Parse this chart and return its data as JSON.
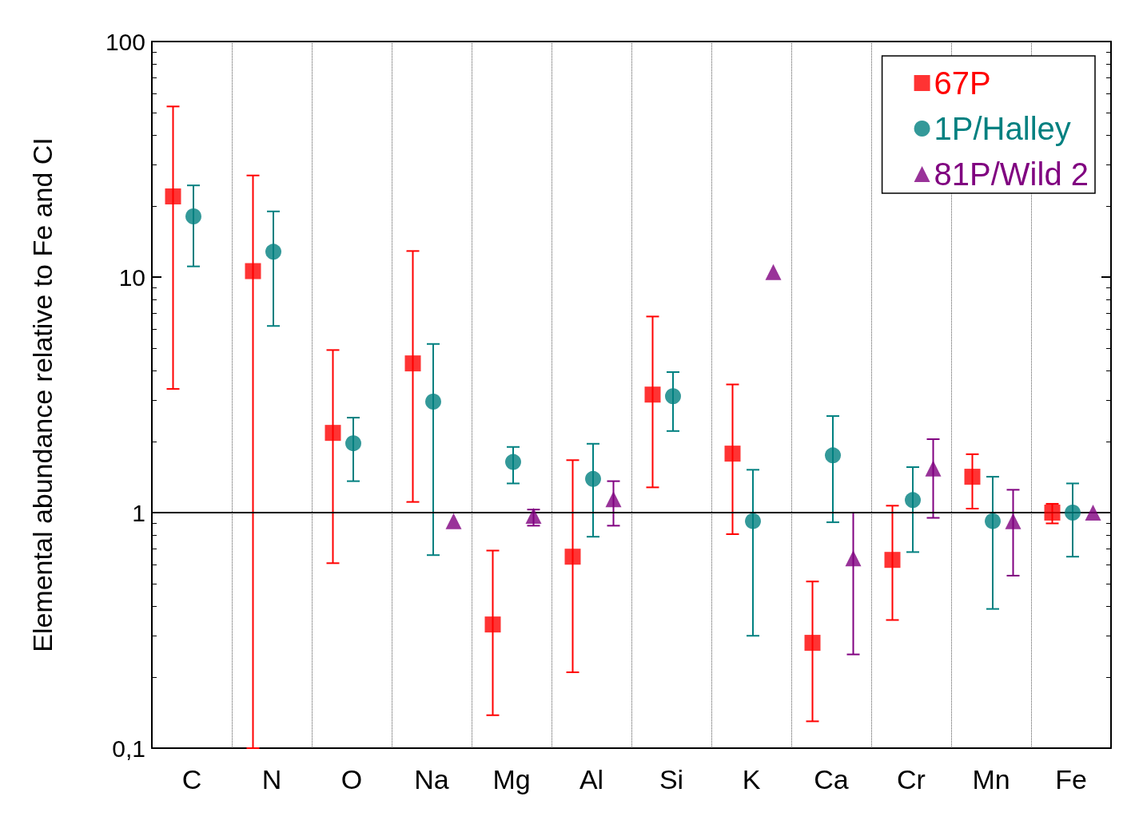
{
  "chart_data": {
    "type": "scatter",
    "ylabel": "Elemental abundance relative to Fe and CI",
    "categories": [
      "C",
      "N",
      "O",
      "Na",
      "Mg",
      "Al",
      "Si",
      "K",
      "Ca",
      "Cr",
      "Mn",
      "Fe"
    ],
    "log": "y",
    "ylim": [
      0.1,
      100
    ],
    "yticks": [
      {
        "value": 0.1,
        "label": "0,1"
      },
      1,
      10,
      100
    ],
    "grid": "x",
    "legend": "top right",
    "ref_lines": [
      {
        "axis": "y",
        "value": 1,
        "color": "#000000",
        "line_style": "solid"
      }
    ],
    "series": [
      {
        "name": "67P",
        "color": "#ff0000",
        "marker": "square",
        "values": [
          22,
          10.6,
          2.18,
          4.3,
          0.335,
          0.65,
          3.17,
          1.78,
          0.28,
          0.63,
          1.42,
          1.0
        ],
        "errors": [
          [
            3.35,
            53
          ],
          [
            0.1,
            27
          ],
          [
            0.61,
            4.9
          ],
          [
            1.11,
            12.9
          ],
          [
            0.138,
            0.69
          ],
          [
            0.21,
            1.67
          ],
          [
            1.28,
            6.8
          ],
          [
            0.81,
            3.5
          ],
          [
            0.13,
            0.51
          ],
          [
            0.35,
            1.07
          ],
          [
            1.04,
            1.77
          ],
          [
            0.9,
            1.09
          ]
        ]
      },
      {
        "name": "1P/Halley",
        "color": "#008080",
        "marker": "circle",
        "values": [
          18.1,
          12.8,
          1.97,
          2.96,
          1.64,
          1.39,
          3.12,
          0.92,
          1.75,
          1.13,
          0.92,
          1.0
        ],
        "errors": [
          [
            11.1,
            24.5
          ],
          [
            6.2,
            19
          ],
          [
            1.36,
            2.53
          ],
          [
            0.66,
            5.2
          ],
          [
            1.33,
            1.9
          ],
          [
            0.79,
            1.96
          ],
          [
            2.22,
            3.95
          ],
          [
            0.3,
            1.52
          ],
          [
            0.91,
            2.57
          ],
          [
            0.68,
            1.56
          ],
          [
            0.39,
            1.42
          ],
          [
            0.65,
            1.33
          ]
        ]
      },
      {
        "name": "81P/Wild 2",
        "color": "#800080",
        "marker": "triangle",
        "values": [
          null,
          null,
          null,
          0.92,
          0.97,
          1.14,
          null,
          10.5,
          0.64,
          1.54,
          0.92,
          1.0
        ],
        "errors": [
          null,
          null,
          null,
          null,
          [
            0.88,
            1.03
          ],
          [
            0.88,
            1.36
          ],
          null,
          null,
          [
            0.25,
            1.0
          ],
          [
            0.95,
            2.05
          ],
          [
            0.54,
            1.25
          ],
          null
        ]
      }
    ]
  }
}
